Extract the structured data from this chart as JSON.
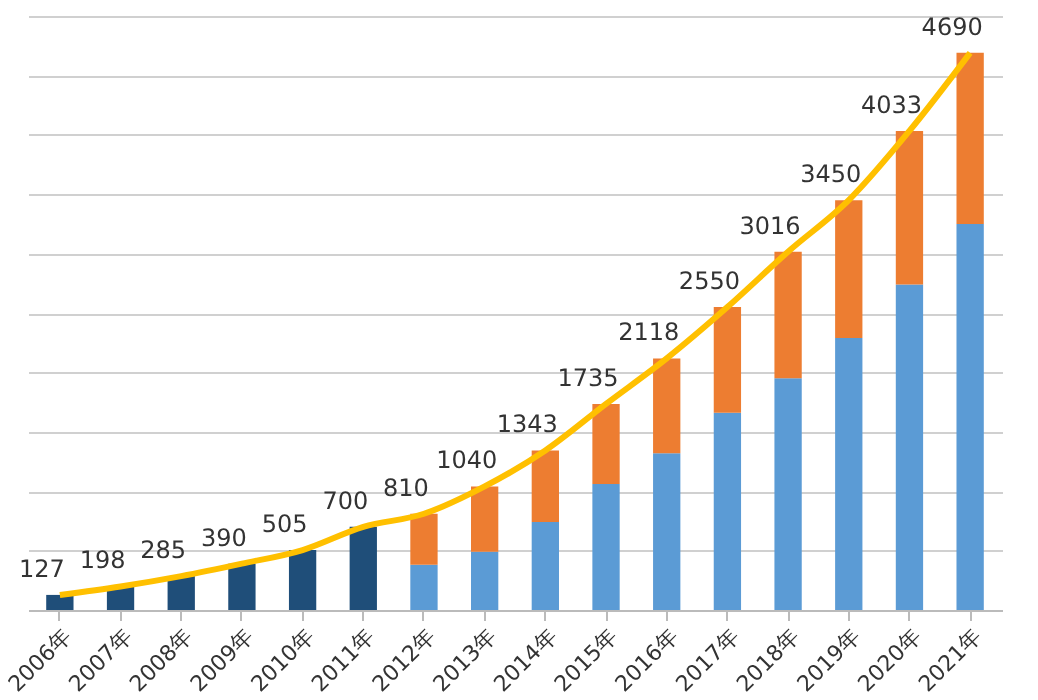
{
  "chart_data": {
    "type": "bar",
    "stacked": true,
    "categories": [
      "2006年",
      "2007年",
      "2008年",
      "2009年",
      "2010年",
      "2011年",
      "2012年",
      "2013年",
      "2014年",
      "2015年",
      "2016年",
      "2017年",
      "2018年",
      "2019年",
      "2020年",
      "2021年"
    ],
    "series": [
      {
        "color": "#1f4e79",
        "values": [
          127,
          198,
          285,
          390,
          505,
          700,
          null,
          null,
          null,
          null,
          null,
          null,
          null,
          null,
          null,
          null
        ]
      },
      {
        "color": "#5b9bd5",
        "values": [
          null,
          null,
          null,
          null,
          null,
          null,
          380,
          490,
          740,
          1060,
          1320,
          1660,
          1950,
          2290,
          2740,
          3250
        ]
      },
      {
        "color": "#ed7d31",
        "values": [
          null,
          null,
          null,
          null,
          null,
          null,
          430,
          550,
          603,
          675,
          798,
          890,
          1066,
          1160,
          1293,
          1440
        ]
      },
      {
        "type": "line",
        "color": "#ffc000",
        "values": [
          127,
          198,
          285,
          390,
          505,
          700,
          810,
          1040,
          1343,
          1735,
          2118,
          2550,
          3016,
          3450,
          4033,
          4690
        ],
        "value_labels": [
          "127",
          "198",
          "285",
          "390",
          "505",
          "700",
          "810",
          "1040",
          "1343",
          "1735",
          "2118",
          "2550",
          "3016",
          "3450",
          "4033",
          "4690"
        ]
      }
    ],
    "grid": "y",
    "tick_labels": "x",
    "line_style": "solid"
  }
}
